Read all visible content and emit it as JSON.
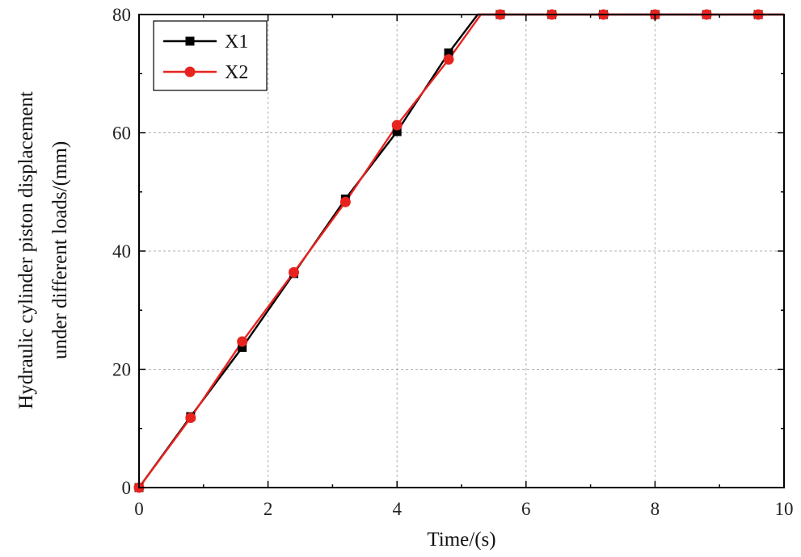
{
  "chart_data": {
    "type": "line",
    "xlabel": "Time/(s)",
    "ylabel_line1": "Hydraulic cylinder piston displacement",
    "ylabel_line2": "under different loads/(mm)",
    "xlim": [
      0,
      10
    ],
    "ylim": [
      0,
      80
    ],
    "xticks": [
      0,
      2,
      4,
      6,
      8,
      10
    ],
    "yticks": [
      0,
      20,
      40,
      60,
      80
    ],
    "grid": true,
    "legend_position": "top-left",
    "series": [
      {
        "name": "X1",
        "color": "#000000",
        "marker": "square",
        "x": [
          0,
          0.8,
          1.6,
          2.4,
          3.2,
          4.0,
          4.8,
          5.25,
          5.6,
          6.4,
          7.2,
          8.0,
          8.8,
          9.6,
          10
        ],
        "y": [
          0,
          12,
          23.7,
          36.2,
          48.8,
          60.2,
          73.5,
          80,
          80,
          80,
          80,
          80,
          80,
          80,
          80
        ],
        "marker_x": [
          0,
          0.8,
          1.6,
          2.4,
          3.2,
          4.0,
          4.8,
          5.6,
          6.4,
          7.2,
          8.0,
          8.8,
          9.6
        ],
        "marker_y": [
          0,
          12,
          23.7,
          36.2,
          48.8,
          60.2,
          73.5,
          80,
          80,
          80,
          80,
          80,
          80
        ]
      },
      {
        "name": "X2",
        "color": "#e8231f",
        "marker": "circle",
        "x": [
          0,
          0.8,
          1.6,
          2.4,
          3.2,
          4.0,
          4.8,
          5.3,
          5.6,
          6.4,
          7.2,
          8.0,
          8.8,
          9.6,
          10
        ],
        "y": [
          0,
          11.8,
          24.7,
          36.4,
          48.3,
          61.3,
          72.4,
          80,
          80,
          80,
          80,
          80,
          80,
          80,
          80
        ],
        "marker_x": [
          0,
          0.8,
          1.6,
          2.4,
          3.2,
          4.0,
          4.8,
          5.6,
          6.4,
          7.2,
          8.0,
          8.8,
          9.6
        ],
        "marker_y": [
          0,
          11.8,
          24.7,
          36.4,
          48.3,
          61.3,
          72.4,
          80,
          80,
          80,
          80,
          80,
          80
        ]
      }
    ]
  }
}
